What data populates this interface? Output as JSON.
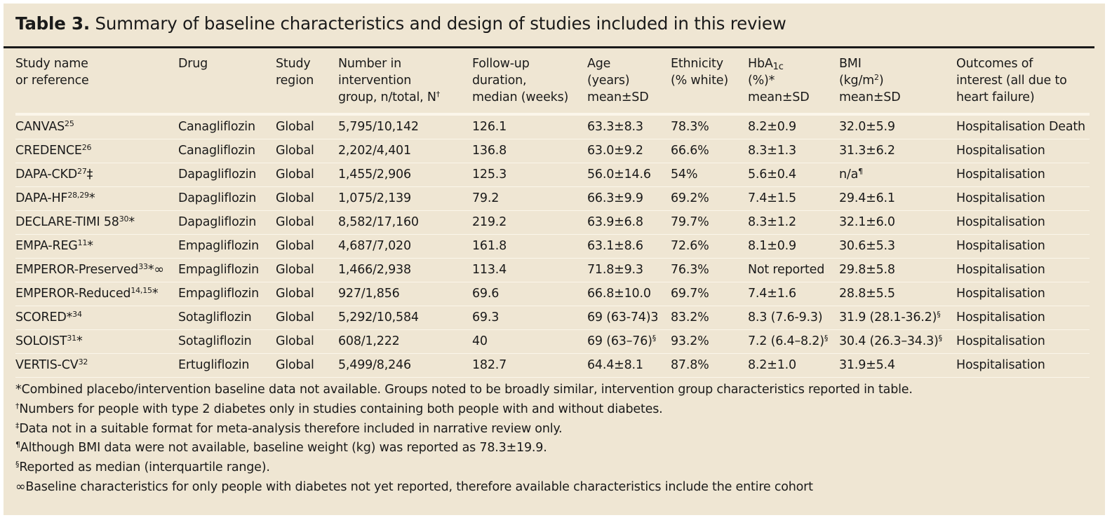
{
  "title": {
    "label": "Table 3.",
    "text": "Summary of baseline characteristics and design of studies included in this review"
  },
  "headers": [
    {
      "lines": [
        "Study name",
        "or reference"
      ]
    },
    {
      "lines": [
        "Drug"
      ]
    },
    {
      "lines": [
        "Study",
        "region"
      ]
    },
    {
      "lines": [
        "Number in",
        "intervention",
        "group, n/total, N"
      ],
      "sup": "†"
    },
    {
      "lines": [
        "Follow-up",
        "duration,",
        "median (weeks)"
      ]
    },
    {
      "lines": [
        "Age",
        "(years)",
        "mean±SD"
      ]
    },
    {
      "lines": [
        "Ethnicity",
        "(% white)"
      ]
    },
    {
      "hba": {
        "pre": "HbA",
        "sub": "1c",
        "line2": "(%)*",
        "line3": "mean±SD"
      }
    },
    {
      "bmi": {
        "line1": "BMI",
        "pre": "(kg/m",
        "sup": "2",
        "post": ")",
        "line3": "mean±SD"
      }
    },
    {
      "lines": [
        "Outcomes of",
        "interest (all due to",
        "heart failure)"
      ]
    }
  ],
  "rows": [
    {
      "study": "CANVAS",
      "ref": "25",
      "mark": "",
      "drug": "Canagliflozin",
      "region": "Global",
      "n": "5,795/10,142",
      "followup": "126.1",
      "age": "63.3±8.3",
      "age_sup": "",
      "eth": "78.3%",
      "hba": "8.2±0.9",
      "hba_sup": "",
      "bmi": "32.0±5.9",
      "bmi_sup": "",
      "outcome": "Hospitalisation Death"
    },
    {
      "study": "CREDENCE",
      "ref": "26",
      "mark": "",
      "drug": "Canagliflozin",
      "region": "Global",
      "n": "2,202/4,401",
      "followup": "136.8",
      "age": "63.0±9.2",
      "age_sup": "",
      "eth": "66.6%",
      "hba": "8.3±1.3",
      "hba_sup": "",
      "bmi": "31.3±6.2",
      "bmi_sup": "",
      "outcome": "Hospitalisation"
    },
    {
      "study": "DAPA-CKD",
      "ref": "27",
      "mark": "‡",
      "drug": "Dapagliflozin",
      "region": "Global",
      "n": "1,455/2,906",
      "followup": "125.3",
      "age": "56.0±14.6",
      "age_sup": "",
      "eth": "54%",
      "hba": "5.6±0.4",
      "hba_sup": "",
      "bmi": "n/a",
      "bmi_sup": "¶",
      "outcome": "Hospitalisation"
    },
    {
      "study": "DAPA-HF",
      "ref": "28,29",
      "mark": "*",
      "drug": "Dapagliflozin",
      "region": "Global",
      "n": "1,075/2,139",
      "followup": "79.2",
      "age": "66.3±9.9",
      "age_sup": "",
      "eth": "69.2%",
      "hba": "7.4±1.5",
      "hba_sup": "",
      "bmi": "29.4±6.1",
      "bmi_sup": "",
      "outcome": "Hospitalisation"
    },
    {
      "study": "DECLARE-TIMI 58",
      "ref": "30",
      "mark": "*",
      "drug": "Dapagliflozin",
      "region": "Global",
      "n": "8,582/17,160",
      "followup": "219.2",
      "age": "63.9±6.8",
      "age_sup": "",
      "eth": "79.7%",
      "hba": "8.3±1.2",
      "hba_sup": "",
      "bmi": "32.1±6.0",
      "bmi_sup": "",
      "outcome": "Hospitalisation"
    },
    {
      "study": "EMPA-REG",
      "ref": "11",
      "mark": "*",
      "drug": "Empagliflozin",
      "region": "Global",
      "n": "4,687/7,020",
      "followup": "161.8",
      "age": "63.1±8.6",
      "age_sup": "",
      "eth": "72.6%",
      "hba": "8.1±0.9",
      "hba_sup": "",
      "bmi": "30.6±5.3",
      "bmi_sup": "",
      "outcome": "Hospitalisation"
    },
    {
      "study": "EMPEROR-Preserved",
      "ref": "33",
      "mark": "*∞",
      "drug": "Empagliflozin",
      "region": "Global",
      "n": "1,466/2,938",
      "followup": "113.4",
      "age": "71.8±9.3",
      "age_sup": "",
      "eth": "76.3%",
      "hba": "Not reported",
      "hba_sup": "",
      "bmi": "29.8±5.8",
      "bmi_sup": "",
      "outcome": "Hospitalisation"
    },
    {
      "study": "EMPEROR-Reduced",
      "ref": "14,15",
      "mark": "*",
      "drug": "Empagliflozin",
      "region": "Global",
      "n": "927/1,856",
      "followup": "69.6",
      "age": "66.8±10.0",
      "age_sup": "",
      "eth": "69.7%",
      "hba": "7.4±1.6",
      "hba_sup": "",
      "bmi": "28.8±5.5",
      "bmi_sup": "",
      "outcome": "Hospitalisation"
    },
    {
      "study": "SCORED",
      "ref": "34",
      "mark": "*",
      "markFirst": true,
      "drug": "Sotagliflozin",
      "region": "Global",
      "n": "5,292/10,584",
      "followup": "69.3",
      "age": "69 (63-74)3",
      "age_sup": "",
      "eth": "83.2%",
      "hba": "8.3 (7.6-9.3)",
      "hba_sup": "",
      "bmi": "31.9 (28.1-36.2)",
      "bmi_sup": "§",
      "outcome": "Hospitalisation"
    },
    {
      "study": "SOLOIST",
      "ref": "31",
      "mark": "*",
      "drug": "Sotagliflozin",
      "region": "Global",
      "n": "608/1,222",
      "followup": "40",
      "age": "69 (63–76)",
      "age_sup": "§",
      "eth": "93.2%",
      "hba": "7.2 (6.4–8.2)",
      "hba_sup": "§",
      "bmi": "30.4 (26.3–34.3)",
      "bmi_sup": "§",
      "outcome": "Hospitalisation"
    },
    {
      "study": "VERTIS-CV",
      "ref": "32",
      "mark": "",
      "drug": "Ertugliflozin",
      "region": "Global",
      "n": "5,499/8,246",
      "followup": "182.7",
      "age": "64.4±8.1",
      "age_sup": "",
      "eth": "87.8%",
      "hba": "8.2±1.0",
      "hba_sup": "",
      "bmi": "31.9±5.4",
      "bmi_sup": "",
      "outcome": "Hospitalisation"
    }
  ],
  "footnotes": [
    {
      "sym": "*",
      "text": "Combined placebo/intervention baseline data not available. Groups noted to be broadly similar, intervention group characteristics reported in table.",
      "supSym": false
    },
    {
      "sym": "†",
      "text": "Numbers for people with type 2 diabetes only in studies containing both people with and without diabetes.",
      "supSym": true
    },
    {
      "sym": "‡",
      "text": "Data not in a suitable format for meta-analysis therefore included in narrative review only.",
      "supSym": true
    },
    {
      "sym": "¶",
      "text": "Although BMI data were not available, baseline weight (kg) was reported as 78.3±19.9.",
      "supSym": true
    },
    {
      "sym": "§",
      "text": "Reported as median (interquartile range).",
      "supSym": true
    },
    {
      "sym": "∞",
      "text": "Baseline characteristics for only people with diabetes not yet reported, therefore available characteristics include the entire cohort",
      "supSym": false
    }
  ]
}
